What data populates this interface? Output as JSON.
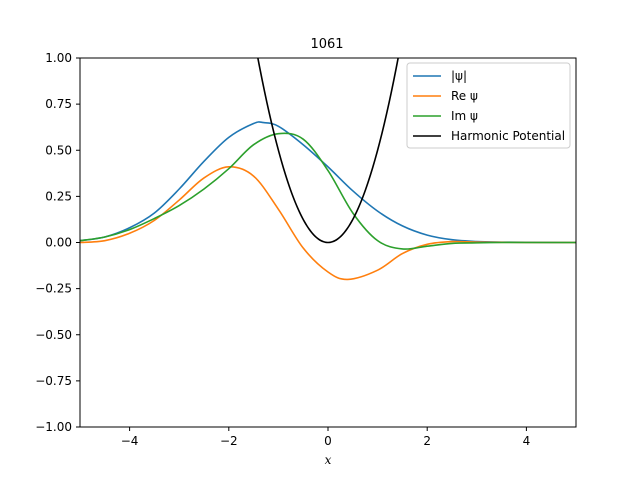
{
  "chart_data": {
    "type": "line",
    "title": "1061",
    "xlabel": "x",
    "ylabel": "",
    "xlim": [
      -5,
      5
    ],
    "ylim": [
      -1,
      1
    ],
    "xticks": [
      -4,
      -2,
      0,
      2,
      4
    ],
    "xtick_labels": [
      "−4",
      "−2",
      "0",
      "2",
      "4"
    ],
    "yticks": [
      -1.0,
      -0.75,
      -0.5,
      -0.25,
      0.0,
      0.25,
      0.5,
      0.75,
      1.0
    ],
    "ytick_labels": [
      "−1.00",
      "−0.75",
      "−0.50",
      "−0.25",
      "0.00",
      "0.25",
      "0.50",
      "0.75",
      "1.00"
    ],
    "grid": false,
    "legend_position": "top-right",
    "series": [
      {
        "name": "|ψ|",
        "color": "#1f77b4",
        "x": [
          -5,
          -4.5,
          -4,
          -3.5,
          -3,
          -2.5,
          -2,
          -1.5,
          -1.3,
          -1,
          -0.5,
          0,
          0.5,
          1,
          1.5,
          2,
          2.5,
          3,
          3.5,
          4,
          5
        ],
        "y": [
          0.01,
          0.03,
          0.08,
          0.16,
          0.29,
          0.44,
          0.57,
          0.645,
          0.65,
          0.63,
          0.53,
          0.41,
          0.28,
          0.17,
          0.09,
          0.04,
          0.015,
          0.005,
          0.002,
          0.001,
          0.0
        ]
      },
      {
        "name": "Re ψ",
        "color": "#ff7f0e",
        "x": [
          -5,
          -4.5,
          -4,
          -3.5,
          -3,
          -2.5,
          -2,
          -1.5,
          -1,
          -0.5,
          0,
          0.4,
          1,
          1.5,
          2,
          2.5,
          3,
          3.5,
          4,
          5
        ],
        "y": [
          0.0,
          0.01,
          0.05,
          0.12,
          0.23,
          0.35,
          0.41,
          0.36,
          0.18,
          -0.03,
          -0.16,
          -0.2,
          -0.15,
          -0.06,
          -0.01,
          0.005,
          0.002,
          0.001,
          0.0,
          0.0
        ]
      },
      {
        "name": "Im ψ",
        "color": "#2ca02c",
        "x": [
          -5,
          -4.5,
          -4,
          -3.5,
          -3,
          -2.5,
          -2,
          -1.5,
          -1,
          -0.5,
          0,
          0.5,
          1,
          1.5,
          2,
          2.5,
          3,
          3.5,
          4,
          5
        ],
        "y": [
          0.01,
          0.03,
          0.07,
          0.13,
          0.2,
          0.29,
          0.4,
          0.53,
          0.59,
          0.56,
          0.39,
          0.16,
          0.01,
          -0.035,
          -0.02,
          -0.005,
          -0.002,
          0.0,
          0.0,
          0.0
        ]
      },
      {
        "name": "Harmonic Potential",
        "color": "#000000",
        "function": "0.5*x^2",
        "x_range": [
          -1.42,
          1.42
        ]
      }
    ]
  }
}
